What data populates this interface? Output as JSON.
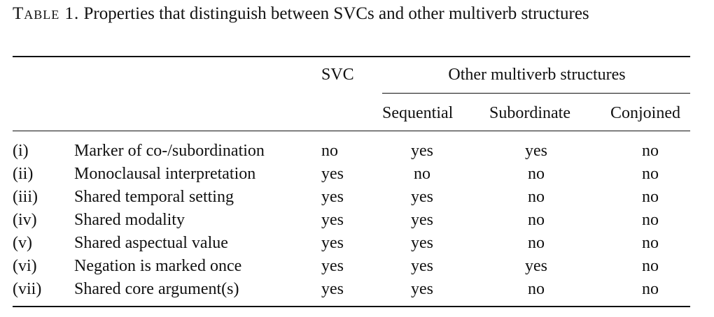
{
  "caption": {
    "label": "Table 1.",
    "text": "Properties that distinguish between SVCs and other multiverb structures"
  },
  "header": {
    "svc": "SVC",
    "group": "Other multiverb structures",
    "sequential": "Sequential",
    "subordinate": "Subordinate",
    "conjoined": "Conjoined"
  },
  "rows": [
    {
      "num": "(i)",
      "property": "Marker of co-/subordination",
      "svc": "no",
      "sequential": "yes",
      "subordinate": "yes",
      "conjoined": "no"
    },
    {
      "num": "(ii)",
      "property": "Monoclausal interpretation",
      "svc": "yes",
      "sequential": "no",
      "subordinate": "no",
      "conjoined": "no"
    },
    {
      "num": "(iii)",
      "property": "Shared temporal setting",
      "svc": "yes",
      "sequential": "yes",
      "subordinate": "no",
      "conjoined": "no"
    },
    {
      "num": "(iv)",
      "property": "Shared modality",
      "svc": "yes",
      "sequential": "yes",
      "subordinate": "no",
      "conjoined": "no"
    },
    {
      "num": "(v)",
      "property": "Shared aspectual value",
      "svc": "yes",
      "sequential": "yes",
      "subordinate": "no",
      "conjoined": "no"
    },
    {
      "num": "(vi)",
      "property": "Negation is marked once",
      "svc": "yes",
      "sequential": "yes",
      "subordinate": "yes",
      "conjoined": "no"
    },
    {
      "num": "(vii)",
      "property": "Shared core argument(s)",
      "svc": "yes",
      "sequential": "yes",
      "subordinate": "no",
      "conjoined": "no"
    }
  ]
}
